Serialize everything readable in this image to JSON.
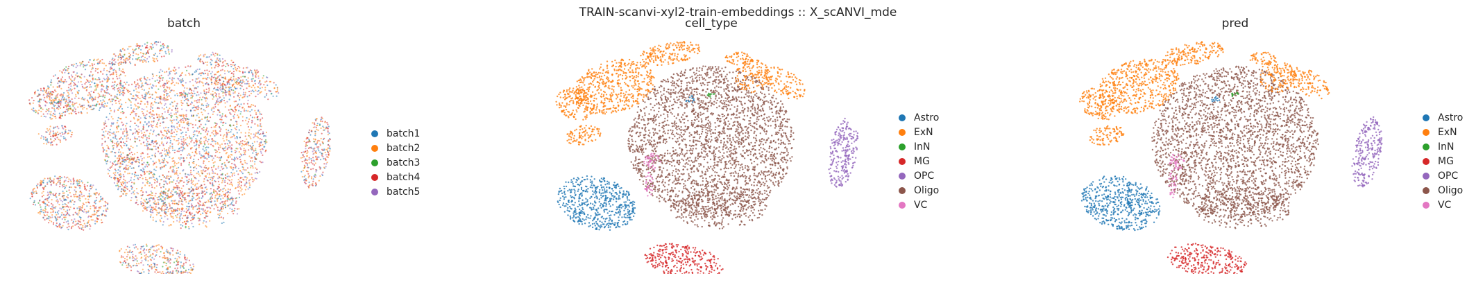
{
  "figure": {
    "title": "TRAIN-scanvi-xyl2-train-embeddings :: X_scANVI_mde"
  },
  "chart_data": [
    {
      "type": "scatter",
      "title": "batch",
      "xlabel": "",
      "ylabel": "",
      "axes_visible": false,
      "grid": false,
      "legend_position": "right",
      "mix": "mixed",
      "series": [
        {
          "name": "batch1",
          "color": "#1f77b4"
        },
        {
          "name": "batch2",
          "color": "#ff7f0e"
        },
        {
          "name": "batch3",
          "color": "#2ca02c"
        },
        {
          "name": "batch4",
          "color": "#d62728"
        },
        {
          "name": "batch5",
          "color": "#9467bd"
        }
      ]
    },
    {
      "type": "scatter",
      "title": "cell_type",
      "xlabel": "",
      "ylabel": "",
      "axes_visible": false,
      "grid": false,
      "legend_position": "right",
      "mix": "clustered",
      "series": [
        {
          "name": "Astro",
          "color": "#1f77b4"
        },
        {
          "name": "ExN",
          "color": "#ff7f0e"
        },
        {
          "name": "InN",
          "color": "#2ca02c"
        },
        {
          "name": "MG",
          "color": "#d62728"
        },
        {
          "name": "OPC",
          "color": "#9467bd"
        },
        {
          "name": "Oligo",
          "color": "#8c564b"
        },
        {
          "name": "VC",
          "color": "#e377c2"
        }
      ]
    },
    {
      "type": "scatter",
      "title": "pred",
      "xlabel": "",
      "ylabel": "",
      "axes_visible": false,
      "grid": false,
      "legend_position": "right",
      "mix": "clustered",
      "series": [
        {
          "name": "Astro",
          "color": "#1f77b4"
        },
        {
          "name": "ExN",
          "color": "#ff7f0e"
        },
        {
          "name": "InN",
          "color": "#2ca02c"
        },
        {
          "name": "MG",
          "color": "#d62728"
        },
        {
          "name": "OPC",
          "color": "#9467bd"
        },
        {
          "name": "Oligo",
          "color": "#8c564b"
        },
        {
          "name": "VC",
          "color": "#e377c2"
        }
      ]
    }
  ]
}
